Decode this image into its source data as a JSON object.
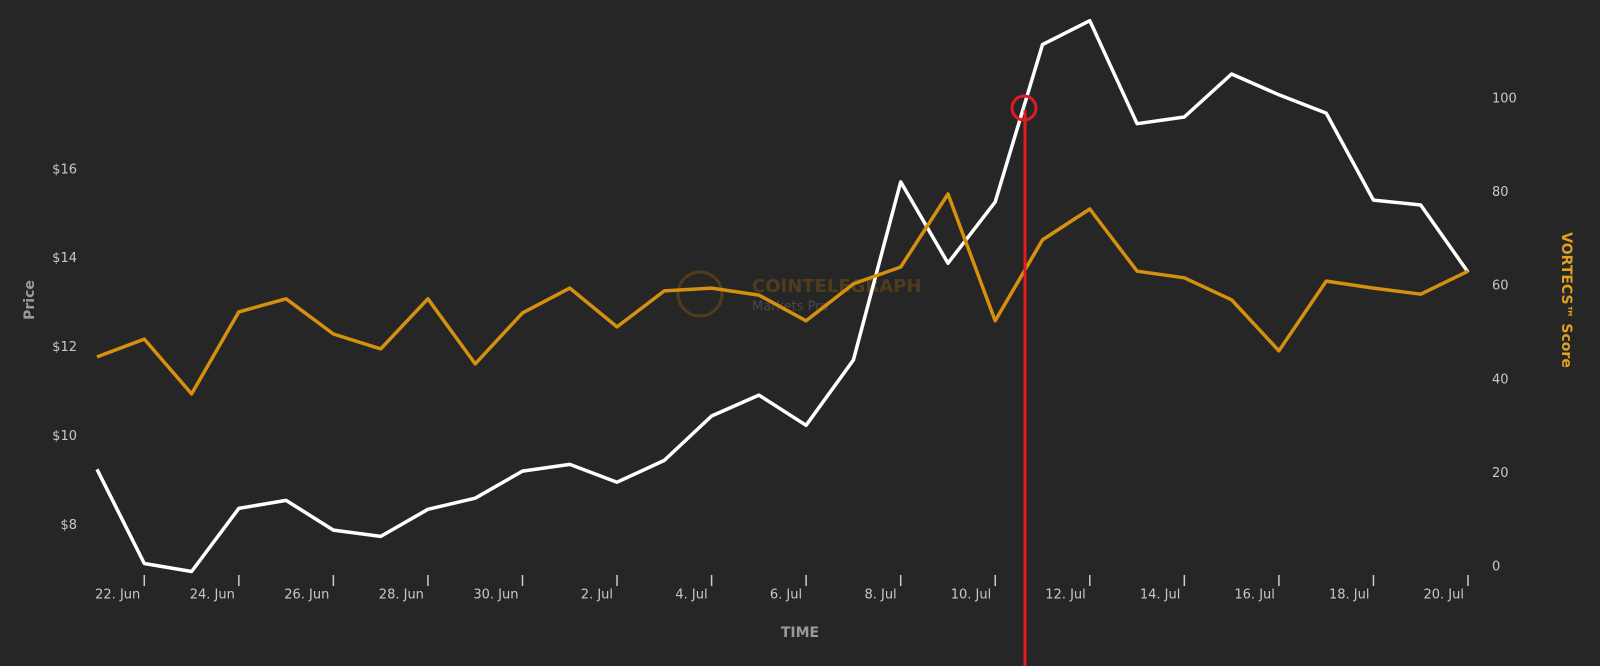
{
  "chart_data": {
    "type": "line",
    "x_label": "TIME",
    "y_label": "Price",
    "y2_label": "VORTECS™ Score",
    "watermark": [
      "COINTELEGRAPH",
      "Markets Pro"
    ],
    "categories": [
      null,
      "22. Jun",
      null,
      "24. Jun",
      null,
      "26. Jun",
      null,
      "28. Jun",
      null,
      "30. Jun",
      null,
      "2. Jul",
      null,
      "4. Jul",
      null,
      "6. Jul",
      null,
      "8. Jul",
      null,
      "10. Jul",
      null,
      "12. Jul",
      null,
      "14. Jul",
      null,
      "16. Jul",
      null,
      "18. Jul",
      null,
      "20. Jul"
    ],
    "series": [
      {
        "name": "Price",
        "color": "#ffffff",
        "axis": "y",
        "values": [
          9.26,
          7.14,
          6.96,
          8.38,
          8.56,
          7.89,
          7.75,
          8.36,
          8.61,
          9.22,
          9.37,
          8.97,
          9.46,
          10.46,
          10.93,
          10.25,
          11.72,
          15.73,
          13.9,
          15.28,
          18.82,
          19.36,
          17.04,
          17.19,
          18.16,
          17.69,
          17.28,
          15.32,
          15.21,
          13.7
        ]
      },
      {
        "name": "VORTECS™ Score",
        "color": "#d4900f",
        "axis": "y2",
        "values": [
          44.9,
          48.7,
          37.0,
          54.5,
          57.3,
          49.8,
          46.6,
          57.3,
          43.4,
          54.3,
          59.6,
          51.3,
          59.0,
          59.6,
          58.1,
          52.6,
          60.5,
          64.1,
          79.7,
          52.6,
          69.9,
          76.5,
          63.2,
          61.8,
          57.1,
          46.2,
          61.1,
          59.6,
          58.3,
          63.2
        ]
      }
    ],
    "ylim": [
      6.7,
      19.6
    ],
    "yticks": [
      {
        "value": 8,
        "label": "$8"
      },
      {
        "value": 10,
        "label": "$10"
      },
      {
        "value": 12,
        "label": "$12"
      },
      {
        "value": 14,
        "label": "$14"
      },
      {
        "value": 16,
        "label": "$16"
      }
    ],
    "y2lim": [
      -3.4,
      119
    ],
    "y2ticks": [
      0,
      20,
      40,
      60,
      80,
      100
    ]
  }
}
